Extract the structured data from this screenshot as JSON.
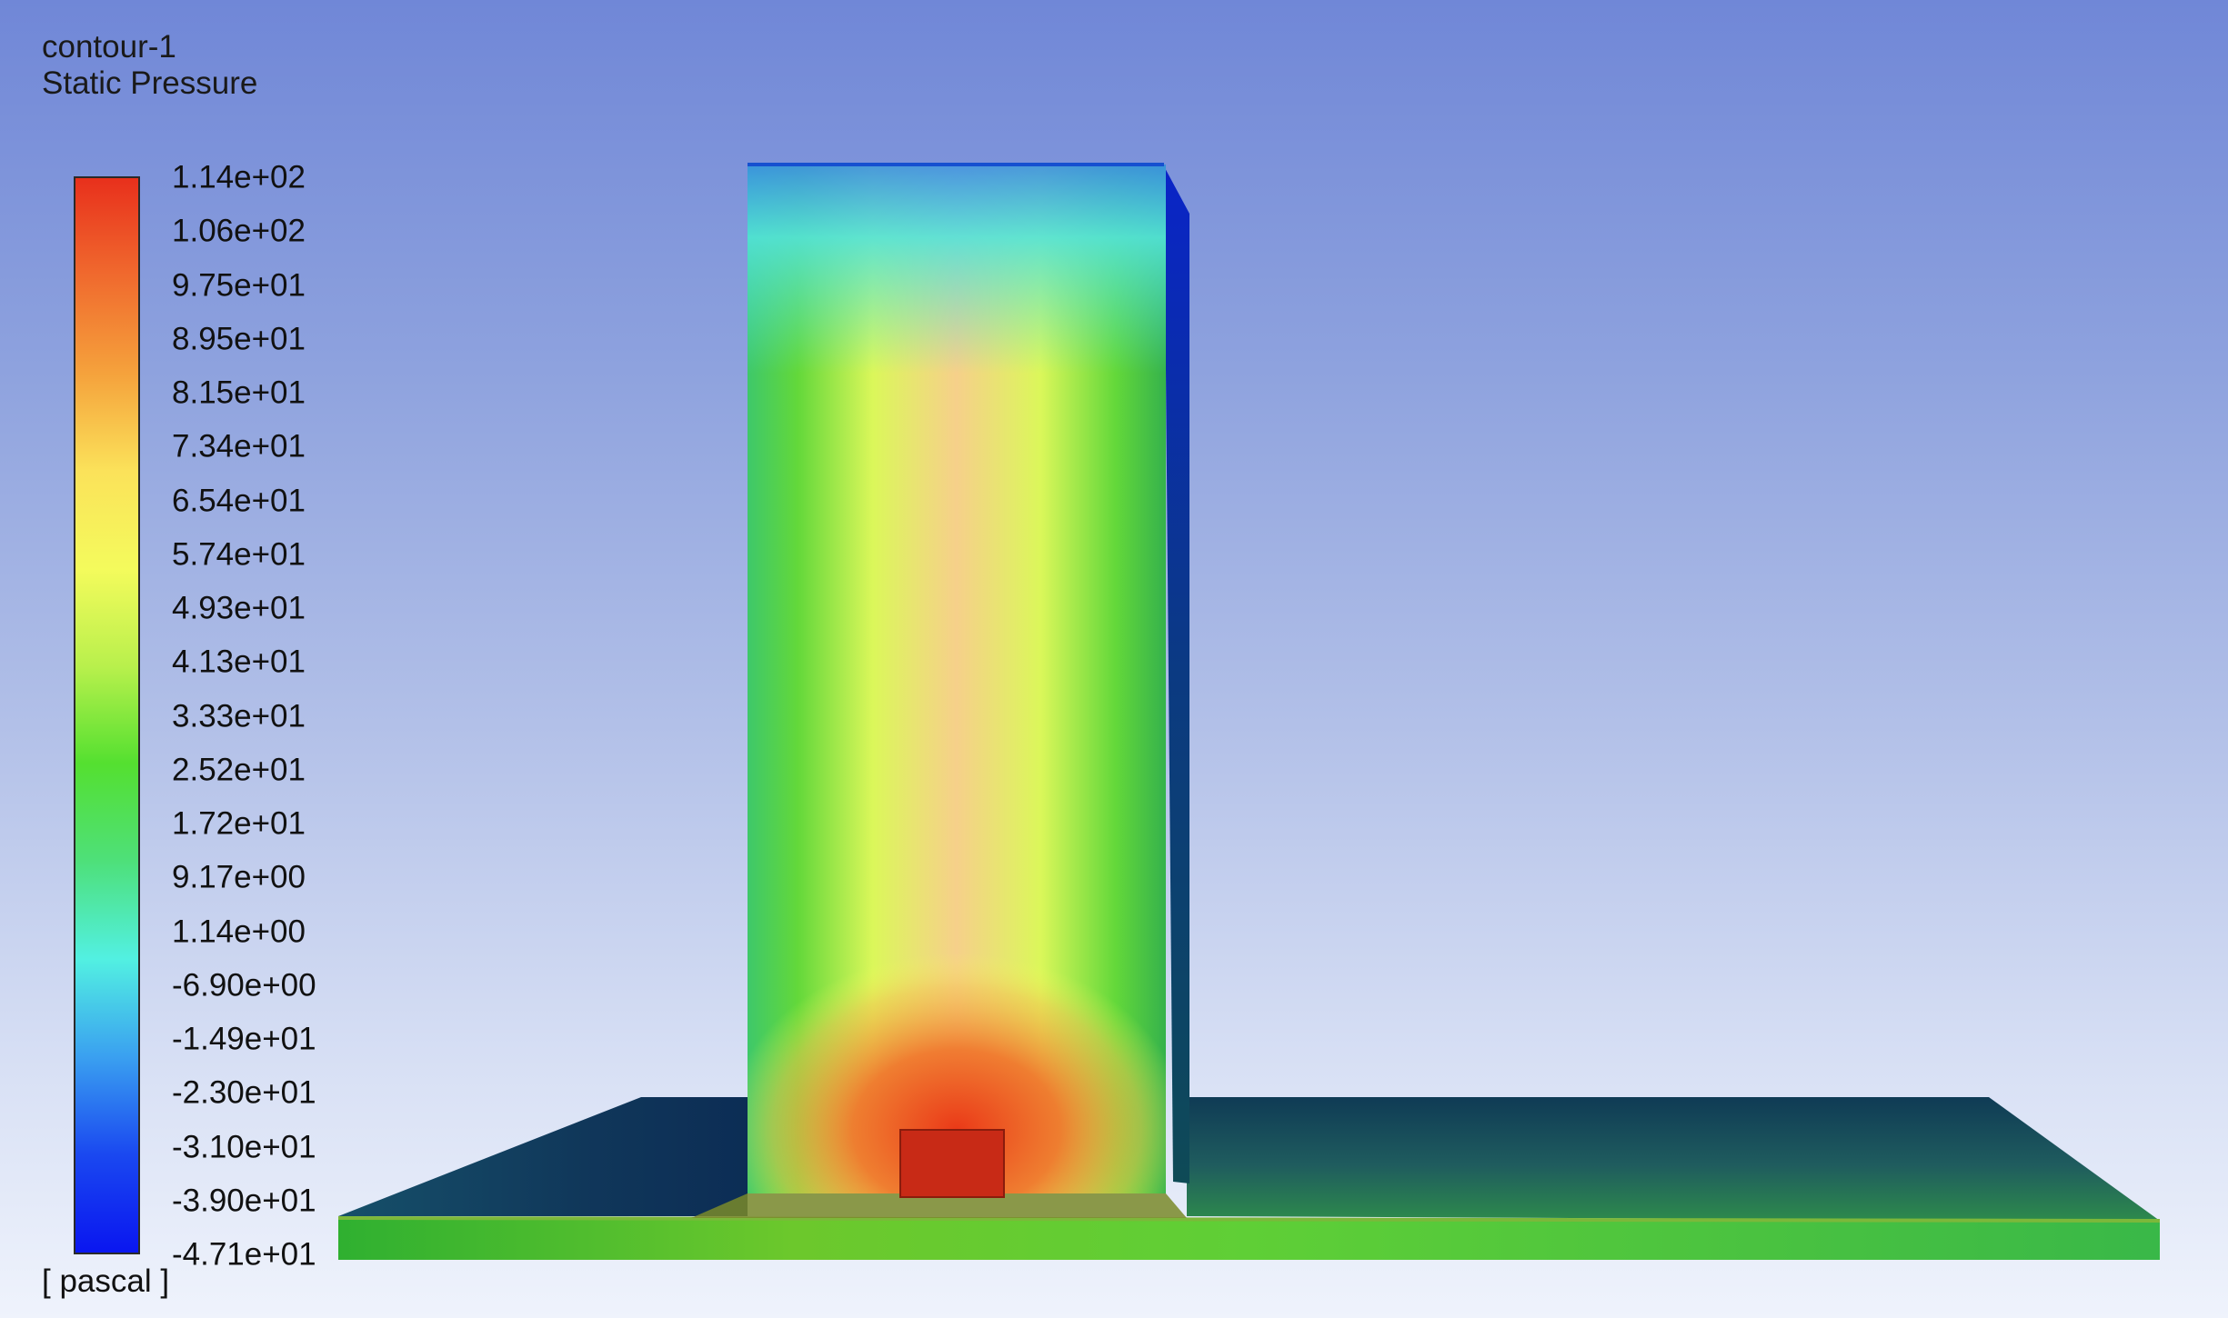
{
  "contour": {
    "name": "contour-1",
    "variable": "Static Pressure",
    "units": "[ pascal ]",
    "levels": [
      "1.14e+02",
      "1.06e+02",
      "9.75e+01",
      "8.95e+01",
      "8.15e+01",
      "7.34e+01",
      "6.54e+01",
      "5.74e+01",
      "4.93e+01",
      "4.13e+01",
      "3.33e+01",
      "2.52e+01",
      "1.72e+01",
      "9.17e+00",
      "1.14e+00",
      "-6.90e+00",
      "-1.49e+01",
      "-2.30e+01",
      "-3.10e+01",
      "-3.90e+01",
      "-4.71e+01"
    ],
    "range": {
      "max": 114,
      "min": -47.1
    },
    "colormap": [
      "#e8301c",
      "#f06a2e",
      "#f5a23c",
      "#fbe25a",
      "#f4fb5c",
      "#b8f04c",
      "#54e030",
      "#4ee07a",
      "#52f0e2",
      "#3aa0f0",
      "#1a48f0",
      "#0a16f0"
    ]
  }
}
